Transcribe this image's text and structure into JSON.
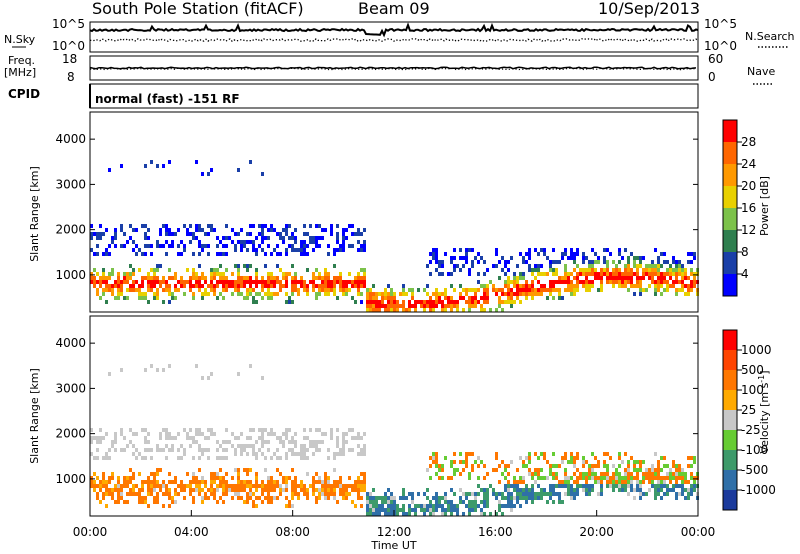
{
  "header": {
    "station": "South Pole Station (fitACF)",
    "beam": "Beam 09",
    "date": "10/Sep/2013"
  },
  "left_labels": {
    "nsky": "N.Sky",
    "freq": "Freq.",
    "mhz": "[MHz]",
    "cpid": "CPID"
  },
  "right_labels": {
    "nsearch": "N.Search",
    "nave": "Nave"
  },
  "noise_panel": {
    "y_ticks": [
      "10^5",
      "10^0"
    ],
    "right_ticks": [
      "10^5",
      "10^0"
    ]
  },
  "freq_panel": {
    "y_ticks": [
      "18",
      "8"
    ],
    "right_ticks": [
      "60",
      "0"
    ]
  },
  "cpid_text": "normal (fast) -151 RF",
  "chart_data": [
    {
      "type": "heatmap",
      "name": "power",
      "ylabel": "Slant Range [km]",
      "ylim": [
        180,
        4600
      ],
      "y_ticks": [
        1000,
        2000,
        3000,
        4000
      ],
      "colorbar": {
        "label": "Power [dB]",
        "ticks": [
          "28",
          "24",
          "20",
          "16",
          "12",
          "8",
          "4"
        ],
        "colors": [
          "#0000ff",
          "#1a3fa8",
          "#2f7f4f",
          "#7cc24a",
          "#e8d000",
          "#ff9900",
          "#ff6600",
          "#ff0000"
        ]
      }
    },
    {
      "type": "heatmap",
      "name": "velocity",
      "ylabel": "Slant Range [km]",
      "xlabel": "Time UT",
      "ylim": [
        180,
        4600
      ],
      "y_ticks": [
        1000,
        2000,
        3000,
        4000
      ],
      "x_ticks": [
        "00:00",
        "04:00",
        "08:00",
        "12:00",
        "16:00",
        "20:00",
        "00:00"
      ],
      "colorbar": {
        "label": "Velocity [m s",
        "label_sup": "-1",
        "label_end": "]",
        "ticks": [
          "1000",
          "500",
          "100",
          "25",
          "-25",
          "-100",
          "-500",
          "-1000"
        ],
        "colors": [
          "#1b3a9c",
          "#2f6fa8",
          "#3d9a6a",
          "#66cc33",
          "#c8c8c8",
          "#ffaa00",
          "#ff7700",
          "#ff4400",
          "#ff0000"
        ]
      }
    }
  ]
}
